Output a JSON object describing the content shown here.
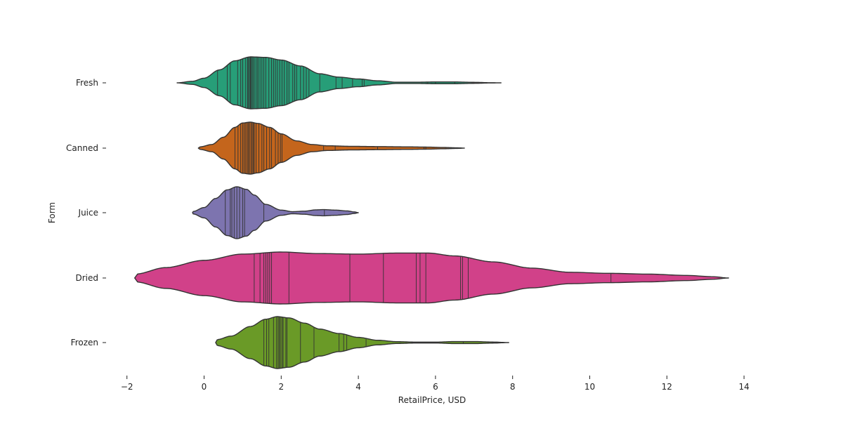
{
  "chart_data": {
    "type": "violin",
    "orientation": "horizontal",
    "xlabel": "RetailPrice, USD",
    "ylabel": "Form",
    "xlim": [
      -2,
      14.5
    ],
    "xticks": [
      {
        "value": -2,
        "label": "−2"
      },
      {
        "value": 0,
        "label": "0"
      },
      {
        "value": 2,
        "label": "2"
      },
      {
        "value": 4,
        "label": "4"
      },
      {
        "value": 6,
        "label": "6"
      },
      {
        "value": 8,
        "label": "8"
      },
      {
        "value": 10,
        "label": "10"
      },
      {
        "value": 12,
        "label": "12"
      },
      {
        "value": 14,
        "label": "14"
      }
    ],
    "grid": false,
    "legend": "none",
    "inner": "stick",
    "series": [
      {
        "name": "Fresh",
        "color": "#279e78",
        "profile": [
          [
            -0.7,
            0.0
          ],
          [
            -0.3,
            0.06
          ],
          [
            0.0,
            0.18
          ],
          [
            0.4,
            0.5
          ],
          [
            0.8,
            0.85
          ],
          [
            1.2,
            1.0
          ],
          [
            1.6,
            0.98
          ],
          [
            2.0,
            0.88
          ],
          [
            2.5,
            0.65
          ],
          [
            3.0,
            0.35
          ],
          [
            3.5,
            0.22
          ],
          [
            4.0,
            0.15
          ],
          [
            4.5,
            0.08
          ],
          [
            5.0,
            0.025
          ],
          [
            5.5,
            0.025
          ],
          [
            6.0,
            0.035
          ],
          [
            6.5,
            0.035
          ],
          [
            7.0,
            0.02
          ],
          [
            7.4,
            0.006
          ],
          [
            7.7,
            0.0
          ]
        ],
        "observations": [
          0.35,
          0.6,
          0.68,
          0.87,
          0.95,
          1.0,
          1.08,
          1.13,
          1.15,
          1.18,
          1.2,
          1.22,
          1.25,
          1.28,
          1.32,
          1.37,
          1.4,
          1.45,
          1.5,
          1.55,
          1.6,
          1.68,
          1.75,
          1.8,
          1.85,
          1.9,
          1.96,
          2.02,
          2.08,
          2.15,
          2.2,
          2.3,
          2.35,
          2.4,
          2.5,
          2.58,
          2.65,
          2.72,
          3.0,
          3.42,
          3.58,
          3.85,
          4.1,
          4.15,
          5.8,
          6.0,
          6.5
        ]
      },
      {
        "name": "Canned",
        "color": "#c4651c",
        "profile": [
          [
            -0.15,
            0.0
          ],
          [
            -0.1,
            0.05
          ],
          [
            0.2,
            0.14
          ],
          [
            0.5,
            0.42
          ],
          [
            0.8,
            0.8
          ],
          [
            1.0,
            0.97
          ],
          [
            1.2,
            1.0
          ],
          [
            1.4,
            0.95
          ],
          [
            1.7,
            0.8
          ],
          [
            2.0,
            0.55
          ],
          [
            2.4,
            0.28
          ],
          [
            2.8,
            0.14
          ],
          [
            3.2,
            0.09
          ],
          [
            3.8,
            0.07
          ],
          [
            4.5,
            0.06
          ],
          [
            5.2,
            0.05
          ],
          [
            5.8,
            0.04
          ],
          [
            6.2,
            0.025
          ],
          [
            6.6,
            0.01
          ],
          [
            6.75,
            0.0
          ]
        ],
        "observations": [
          0.8,
          0.88,
          0.95,
          1.0,
          1.04,
          1.08,
          1.12,
          1.15,
          1.18,
          1.22,
          1.25,
          1.28,
          1.3,
          1.35,
          1.42,
          1.5,
          1.55,
          1.62,
          1.7,
          1.75,
          1.85,
          1.92,
          1.98,
          2.02,
          3.1,
          3.4,
          4.5,
          5.7,
          5.75
        ]
      },
      {
        "name": "Juice",
        "color": "#7d74af",
        "profile": [
          [
            -0.3,
            0.0
          ],
          [
            -0.28,
            0.05
          ],
          [
            0.0,
            0.2
          ],
          [
            0.3,
            0.55
          ],
          [
            0.6,
            0.88
          ],
          [
            0.85,
            1.0
          ],
          [
            1.1,
            0.9
          ],
          [
            1.3,
            0.68
          ],
          [
            1.6,
            0.32
          ],
          [
            2.0,
            0.1
          ],
          [
            2.3,
            0.04
          ],
          [
            2.6,
            0.06
          ],
          [
            2.9,
            0.11
          ],
          [
            3.1,
            0.12
          ],
          [
            3.4,
            0.1
          ],
          [
            3.7,
            0.07
          ],
          [
            3.9,
            0.03
          ],
          [
            4.0,
            0.0
          ]
        ],
        "observations": [
          0.55,
          0.68,
          0.72,
          0.78,
          0.85,
          0.92,
          1.0,
          1.05,
          1.55,
          3.12
        ]
      },
      {
        "name": "Dried",
        "color": "#d14189",
        "profile": [
          [
            -1.8,
            0.0
          ],
          [
            -1.78,
            0.15
          ],
          [
            -1.0,
            0.4
          ],
          [
            0.0,
            0.68
          ],
          [
            1.0,
            0.92
          ],
          [
            2.0,
            1.0
          ],
          [
            3.0,
            0.94
          ],
          [
            4.0,
            0.92
          ],
          [
            5.0,
            0.96
          ],
          [
            5.8,
            0.96
          ],
          [
            6.5,
            0.85
          ],
          [
            7.5,
            0.62
          ],
          [
            8.5,
            0.38
          ],
          [
            9.5,
            0.22
          ],
          [
            10.5,
            0.18
          ],
          [
            11.5,
            0.15
          ],
          [
            12.5,
            0.1
          ],
          [
            13.2,
            0.05
          ],
          [
            13.6,
            0.0
          ]
        ],
        "observations": [
          1.3,
          1.45,
          1.55,
          1.6,
          1.65,
          1.7,
          1.75,
          2.2,
          3.78,
          4.65,
          5.5,
          5.6,
          5.75,
          6.65,
          6.7,
          6.85,
          10.55
        ]
      },
      {
        "name": "Frozen",
        "color": "#6a9a27",
        "profile": [
          [
            0.3,
            0.0
          ],
          [
            0.35,
            0.12
          ],
          [
            0.7,
            0.25
          ],
          [
            1.2,
            0.62
          ],
          [
            1.6,
            0.9
          ],
          [
            1.9,
            1.0
          ],
          [
            2.2,
            0.95
          ],
          [
            2.6,
            0.75
          ],
          [
            3.0,
            0.52
          ],
          [
            3.5,
            0.35
          ],
          [
            4.0,
            0.2
          ],
          [
            4.5,
            0.09
          ],
          [
            5.0,
            0.035
          ],
          [
            5.5,
            0.018
          ],
          [
            6.0,
            0.018
          ],
          [
            6.5,
            0.04
          ],
          [
            7.0,
            0.04
          ],
          [
            7.5,
            0.02
          ],
          [
            7.9,
            0.0
          ]
        ],
        "observations": [
          1.55,
          1.62,
          1.68,
          1.8,
          1.88,
          1.92,
          1.95,
          1.98,
          2.02,
          2.05,
          2.12,
          2.15,
          2.5,
          2.85,
          3.5,
          3.62,
          3.7,
          4.2,
          6.72
        ]
      }
    ]
  }
}
